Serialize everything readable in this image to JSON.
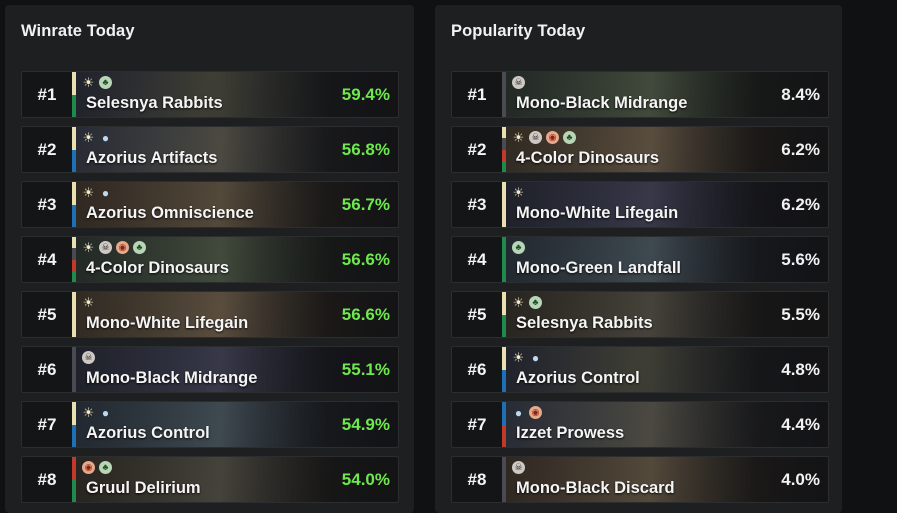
{
  "colors": {
    "W": "#e9dfb0",
    "U": "#1f6fb5",
    "B": "#4a4a52",
    "R": "#c0392b",
    "G": "#1f8a4c",
    "winrate_text": "#6ee84e"
  },
  "winrate": {
    "title": "Winrate Today",
    "rows": [
      {
        "rank": "#1",
        "name": "Selesnya Rabbits",
        "value": "59.4%",
        "mana": [
          "W",
          "G"
        ]
      },
      {
        "rank": "#2",
        "name": "Azorius Artifacts",
        "value": "56.8%",
        "mana": [
          "W",
          "U"
        ]
      },
      {
        "rank": "#3",
        "name": "Azorius Omniscience",
        "value": "56.7%",
        "mana": [
          "W",
          "U"
        ]
      },
      {
        "rank": "#4",
        "name": "4-Color Dinosaurs",
        "value": "56.6%",
        "mana": [
          "W",
          "B",
          "R",
          "G"
        ]
      },
      {
        "rank": "#5",
        "name": "Mono-White Lifegain",
        "value": "56.6%",
        "mana": [
          "W"
        ]
      },
      {
        "rank": "#6",
        "name": "Mono-Black Midrange",
        "value": "55.1%",
        "mana": [
          "B"
        ]
      },
      {
        "rank": "#7",
        "name": "Azorius Control",
        "value": "54.9%",
        "mana": [
          "W",
          "U"
        ]
      },
      {
        "rank": "#8",
        "name": "Gruul Delirium",
        "value": "54.0%",
        "mana": [
          "R",
          "G"
        ]
      }
    ]
  },
  "popularity": {
    "title": "Popularity Today",
    "rows": [
      {
        "rank": "#1",
        "name": "Mono-Black Midrange",
        "value": "8.4%",
        "mana": [
          "B"
        ]
      },
      {
        "rank": "#2",
        "name": "4-Color Dinosaurs",
        "value": "6.2%",
        "mana": [
          "W",
          "B",
          "R",
          "G"
        ]
      },
      {
        "rank": "#3",
        "name": "Mono-White Lifegain",
        "value": "6.2%",
        "mana": [
          "W"
        ]
      },
      {
        "rank": "#4",
        "name": "Mono-Green Landfall",
        "value": "5.6%",
        "mana": [
          "G"
        ]
      },
      {
        "rank": "#5",
        "name": "Selesnya Rabbits",
        "value": "5.5%",
        "mana": [
          "W",
          "G"
        ]
      },
      {
        "rank": "#6",
        "name": "Azorius Control",
        "value": "4.8%",
        "mana": [
          "W",
          "U"
        ]
      },
      {
        "rank": "#7",
        "name": "Izzet Prowess",
        "value": "4.4%",
        "mana": [
          "U",
          "R"
        ]
      },
      {
        "rank": "#8",
        "name": "Mono-Black Discard",
        "value": "4.0%",
        "mana": [
          "B"
        ]
      }
    ]
  }
}
